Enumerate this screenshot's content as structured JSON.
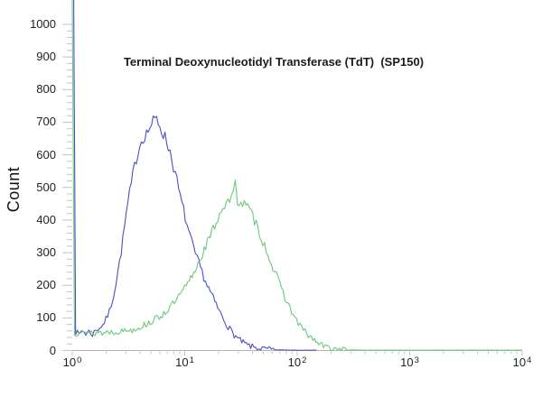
{
  "title": "Terminal Deoxynucleotidyl Transferase (TdT)  (SP150)",
  "y_axis": {
    "label": "Count",
    "tick_labels": [
      "0",
      "100",
      "200",
      "300",
      "400",
      "500",
      "600",
      "700",
      "800",
      "900",
      "1000"
    ],
    "tick_values": [
      0,
      100,
      200,
      300,
      400,
      500,
      600,
      700,
      800,
      900,
      1000
    ],
    "minor_step": 20
  },
  "x_axis": {
    "scale": "log10",
    "tick_labels": [
      {
        "base": "10",
        "exp": "0"
      },
      {
        "base": "10",
        "exp": "1"
      },
      {
        "base": "10",
        "exp": "2"
      },
      {
        "base": "10",
        "exp": "3"
      },
      {
        "base": "10",
        "exp": "4"
      }
    ],
    "decades": [
      0,
      1,
      2,
      3,
      4
    ],
    "minor_ticks": [
      2,
      3,
      4,
      5,
      6,
      7,
      8,
      9
    ]
  },
  "colors": {
    "blue_curve": "#4b4fc5",
    "green_curve": "#6cc97c",
    "axis_line": "#b2b2b2",
    "tick": "#c3c3c3",
    "text": "#1b1b1b"
  },
  "chart_data": {
    "type": "line",
    "title": "Terminal Deoxynucleotidyl Transferase (TdT)  (SP150)",
    "xlabel": "",
    "ylabel": "Count",
    "x_scale": "log10",
    "xlim": [
      1,
      10000
    ],
    "ylim": [
      0,
      1000
    ],
    "grid": false,
    "legend": "none",
    "note": "Both traces spike off-scale (above 1000) at the first bin near x=1",
    "series": [
      {
        "name": "blue-curve",
        "color": "#4b4fc5",
        "peak": {
          "x_log10": 0.75,
          "count": 710
        },
        "points_log10_count": [
          [
            0.013,
            1075
          ],
          [
            0.03,
            58
          ],
          [
            0.06,
            48
          ],
          [
            0.09,
            62
          ],
          [
            0.12,
            52
          ],
          [
            0.15,
            58
          ],
          [
            0.18,
            50
          ],
          [
            0.21,
            62
          ],
          [
            0.24,
            70
          ],
          [
            0.27,
            78
          ],
          [
            0.3,
            95
          ],
          [
            0.33,
            120
          ],
          [
            0.36,
            160
          ],
          [
            0.39,
            210
          ],
          [
            0.42,
            270
          ],
          [
            0.45,
            340
          ],
          [
            0.48,
            420
          ],
          [
            0.51,
            480
          ],
          [
            0.54,
            540
          ],
          [
            0.57,
            590
          ],
          [
            0.6,
            630
          ],
          [
            0.63,
            655
          ],
          [
            0.66,
            665
          ],
          [
            0.69,
            685
          ],
          [
            0.72,
            700
          ],
          [
            0.75,
            710
          ],
          [
            0.78,
            690
          ],
          [
            0.81,
            665
          ],
          [
            0.84,
            640
          ],
          [
            0.87,
            610
          ],
          [
            0.9,
            565
          ],
          [
            0.93,
            520
          ],
          [
            0.96,
            470
          ],
          [
            0.99,
            430
          ],
          [
            1.02,
            385
          ],
          [
            1.05,
            345
          ],
          [
            1.08,
            310
          ],
          [
            1.11,
            280
          ],
          [
            1.14,
            255
          ],
          [
            1.17,
            225
          ],
          [
            1.2,
            200
          ],
          [
            1.24,
            170
          ],
          [
            1.28,
            140
          ],
          [
            1.32,
            112
          ],
          [
            1.36,
            88
          ],
          [
            1.4,
            66
          ],
          [
            1.44,
            48
          ],
          [
            1.48,
            34
          ],
          [
            1.52,
            24
          ],
          [
            1.56,
            16
          ],
          [
            1.6,
            11
          ],
          [
            1.66,
            7
          ],
          [
            1.72,
            4
          ],
          [
            1.8,
            2
          ],
          [
            1.9,
            1.5
          ],
          [
            2.0,
            1
          ],
          [
            2.1,
            1
          ],
          [
            2.17,
            1
          ]
        ]
      },
      {
        "name": "green-curve",
        "color": "#6cc97c",
        "peak": {
          "x_log10": 1.45,
          "count": 520
        },
        "points_log10_count": [
          [
            0.0,
            1075
          ],
          [
            0.02,
            50
          ],
          [
            0.05,
            55
          ],
          [
            0.08,
            72
          ],
          [
            0.11,
            60
          ],
          [
            0.14,
            48
          ],
          [
            0.17,
            55
          ],
          [
            0.2,
            52
          ],
          [
            0.24,
            58
          ],
          [
            0.28,
            52
          ],
          [
            0.32,
            60
          ],
          [
            0.36,
            55
          ],
          [
            0.4,
            60
          ],
          [
            0.44,
            58
          ],
          [
            0.48,
            64
          ],
          [
            0.52,
            62
          ],
          [
            0.56,
            68
          ],
          [
            0.6,
            72
          ],
          [
            0.64,
            78
          ],
          [
            0.68,
            85
          ],
          [
            0.72,
            92
          ],
          [
            0.76,
            100
          ],
          [
            0.8,
            110
          ],
          [
            0.84,
            122
          ],
          [
            0.88,
            136
          ],
          [
            0.92,
            152
          ],
          [
            0.96,
            170
          ],
          [
            1.0,
            190
          ],
          [
            1.04,
            212
          ],
          [
            1.08,
            238
          ],
          [
            1.12,
            268
          ],
          [
            1.16,
            300
          ],
          [
            1.2,
            330
          ],
          [
            1.24,
            360
          ],
          [
            1.28,
            395
          ],
          [
            1.31,
            420
          ],
          [
            1.34,
            440
          ],
          [
            1.37,
            452
          ],
          [
            1.4,
            460
          ],
          [
            1.43,
            470
          ],
          [
            1.45,
            520
          ],
          [
            1.47,
            462
          ],
          [
            1.5,
            455
          ],
          [
            1.53,
            448
          ],
          [
            1.56,
            438
          ],
          [
            1.59,
            420
          ],
          [
            1.62,
            400
          ],
          [
            1.65,
            375
          ],
          [
            1.68,
            348
          ],
          [
            1.71,
            322
          ],
          [
            1.74,
            296
          ],
          [
            1.77,
            268
          ],
          [
            1.8,
            242
          ],
          [
            1.83,
            215
          ],
          [
            1.86,
            190
          ],
          [
            1.89,
            165
          ],
          [
            1.92,
            142
          ],
          [
            1.95,
            120
          ],
          [
            1.98,
            100
          ],
          [
            2.01,
            84
          ],
          [
            2.04,
            70
          ],
          [
            2.07,
            57
          ],
          [
            2.1,
            46
          ],
          [
            2.14,
            34
          ],
          [
            2.18,
            24
          ],
          [
            2.22,
            16
          ],
          [
            2.26,
            11
          ],
          [
            2.3,
            7
          ],
          [
            2.36,
            4
          ],
          [
            2.42,
            2.5
          ],
          [
            2.5,
            1.5
          ],
          [
            2.6,
            1
          ],
          [
            2.8,
            1
          ],
          [
            3.0,
            1
          ],
          [
            3.5,
            1
          ],
          [
            4.0,
            1
          ]
        ]
      }
    ]
  }
}
